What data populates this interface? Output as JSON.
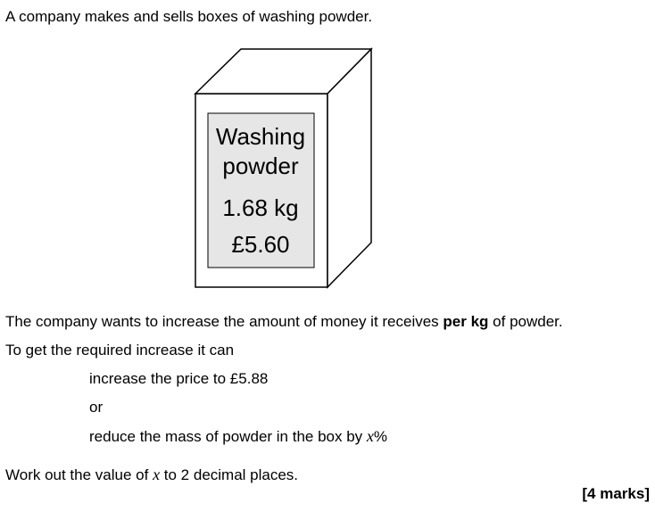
{
  "question": {
    "intro": "A company makes and sells boxes of washing powder.",
    "box_label": {
      "line1": "Washing",
      "line2": "powder",
      "mass": "1.68 kg",
      "price": "£5.60"
    },
    "statement_pre": "The company wants to increase the amount of money it receives ",
    "statement_bold": "per kg",
    "statement_post": " of powder.",
    "options_intro": "To get the required increase it can",
    "option_1": "increase the price to £5.88",
    "or": "or",
    "option_2_pre": "reduce the mass of powder in the box by ",
    "option_2_var": "x",
    "option_2_post": "%",
    "task_pre": "Work out the value of ",
    "task_var": "x",
    "task_post": " to 2 decimal places.",
    "marks": "[4 marks]"
  },
  "colors": {
    "label_fill": "#e6e6e6",
    "outline": "#000000"
  }
}
